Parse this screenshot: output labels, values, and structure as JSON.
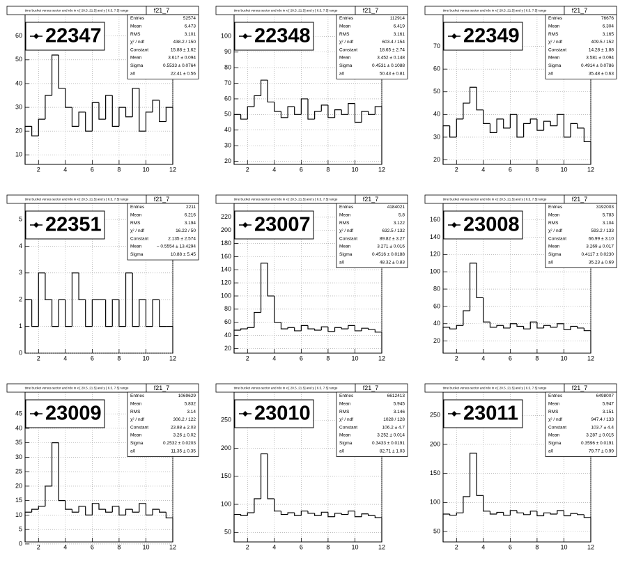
{
  "chart_data": [
    {
      "type": "histogram",
      "title": "time bucket versus sector and rdo in x [ 20.5, 21.5] and y [  6.5,  7.5] range",
      "name": "f21_7",
      "label": "22347",
      "color": "#000000",
      "grid": true,
      "bins": [
        1,
        1.5,
        2,
        2.5,
        3,
        3.5,
        4,
        4.5,
        5,
        5.5,
        6,
        6.5,
        7,
        7.5,
        8,
        8.5,
        9,
        9.5,
        10,
        10.5,
        11,
        11.5,
        12
      ],
      "values": [
        22,
        18,
        25,
        35,
        52,
        38,
        30,
        22,
        28,
        20,
        32,
        25,
        35,
        22,
        30,
        26,
        38,
        20,
        28,
        33,
        24,
        30
      ],
      "xlim": [
        1,
        12
      ],
      "xticks": [
        2,
        4,
        6,
        8,
        10,
        12
      ],
      "ylim": [
        6,
        69
      ],
      "yticks": [
        10,
        20,
        30,
        40,
        50,
        60
      ],
      "stats": [
        [
          "Entries",
          "52574"
        ],
        [
          "Mean",
          "6.473"
        ],
        [
          "RMS",
          "3.101"
        ],
        [
          "χ² / ndf",
          "438.2 / 150"
        ],
        [
          "Constant",
          "15.88 ± 1.62"
        ],
        [
          "Mean",
          "3.617 ± 0.094"
        ],
        [
          "Sigma",
          "0.5533 ± 0.0764"
        ],
        [
          "a0",
          "22.41 ± 0.56"
        ]
      ]
    },
    {
      "type": "histogram",
      "title": "time bucket versus sector and rdo in x [ 20.5, 21.5] and y [  6.5,  7.5] range",
      "name": "f21_7",
      "label": "22348",
      "color": "#000000",
      "grid": true,
      "bins": [
        1,
        1.5,
        2,
        2.5,
        3,
        3.5,
        4,
        4.5,
        5,
        5.5,
        6,
        6.5,
        7,
        7.5,
        8,
        8.5,
        9,
        9.5,
        10,
        10.5,
        11,
        11.5,
        12
      ],
      "values": [
        50,
        47,
        55,
        62,
        72,
        58,
        52,
        48,
        55,
        50,
        60,
        47,
        52,
        56,
        48,
        53,
        50,
        57,
        45,
        52,
        50,
        55
      ],
      "xlim": [
        1,
        12
      ],
      "xticks": [
        2,
        4,
        6,
        8,
        10,
        12
      ],
      "ylim": [
        18,
        114
      ],
      "yticks": [
        20,
        30,
        40,
        50,
        60,
        70,
        80,
        90,
        100
      ],
      "stats": [
        [
          "Entries",
          "112914"
        ],
        [
          "Mean",
          "6.419"
        ],
        [
          "RMS",
          "3.161"
        ],
        [
          "χ² / ndf",
          "603.4 / 154"
        ],
        [
          "Constant",
          "18.65 ± 2.74"
        ],
        [
          "Mean",
          "3.452 ± 0.148"
        ],
        [
          "Sigma",
          "0.4531 ± 0.1088"
        ],
        [
          "a0",
          "50.43 ± 0.81"
        ]
      ]
    },
    {
      "type": "histogram",
      "title": "time bucket versus sector and rdo in x [ 20.5, 21.5] and y [  6.5,  7.5] range",
      "name": "f21_7",
      "label": "22349",
      "color": "#000000",
      "grid": true,
      "bins": [
        1,
        1.5,
        2,
        2.5,
        3,
        3.5,
        4,
        4.5,
        5,
        5.5,
        6,
        6.5,
        7,
        7.5,
        8,
        8.5,
        9,
        9.5,
        10,
        10.5,
        11,
        11.5,
        12
      ],
      "values": [
        35,
        30,
        38,
        45,
        52,
        42,
        36,
        32,
        38,
        34,
        40,
        30,
        36,
        38,
        33,
        37,
        35,
        40,
        30,
        36,
        34,
        28
      ],
      "xlim": [
        1,
        12
      ],
      "xticks": [
        2,
        4,
        6,
        8,
        10,
        12
      ],
      "ylim": [
        18,
        84
      ],
      "yticks": [
        20,
        30,
        40,
        50,
        60,
        70
      ],
      "stats": [
        [
          "Entries",
          "76676"
        ],
        [
          "Mean",
          "6.304"
        ],
        [
          "RMS",
          "3.165"
        ],
        [
          "χ² / ndf",
          "409.5 / 152"
        ],
        [
          "Constant",
          "14.28 ± 1.88"
        ],
        [
          "Mean",
          "3.581 ± 0.094"
        ],
        [
          "Sigma",
          "0.4914 ± 0.0786"
        ],
        [
          "a0",
          "35.48 ± 0.63"
        ]
      ]
    },
    {
      "type": "histogram",
      "title": "time bucket versus sector and rdo in x [ 20.5, 21.5] and y [  6.5,  7.5] range",
      "name": "f21_7",
      "label": "22351",
      "color": "#000000",
      "grid": true,
      "bins": [
        1,
        1.5,
        2,
        2.5,
        3,
        3.5,
        4,
        4.5,
        5,
        5.5,
        6,
        6.5,
        7,
        7.5,
        8,
        8.5,
        9,
        9.5,
        10,
        10.5,
        11,
        11.5,
        12
      ],
      "values": [
        2,
        1,
        3,
        2,
        1,
        2,
        1,
        3,
        2,
        1,
        2,
        2,
        1,
        2,
        1,
        3,
        1,
        2,
        1,
        2,
        1,
        1
      ],
      "xlim": [
        1,
        12
      ],
      "xticks": [
        2,
        4,
        6,
        8,
        10,
        12
      ],
      "ylim": [
        0,
        5.6
      ],
      "yticks": [
        0,
        1,
        2,
        3,
        4,
        5
      ],
      "stats": [
        [
          "Entries",
          "2211"
        ],
        [
          "Mean",
          "6.216"
        ],
        [
          "RMS",
          "3.194"
        ],
        [
          "χ² / ndf",
          "16.22 / 50"
        ],
        [
          "Constant",
          "2.135 ± 2.574"
        ],
        [
          "Mean",
          "− 0.5554 ± 13.4294"
        ],
        [
          "Sigma",
          "10.88 ± 5.45"
        ]
      ]
    },
    {
      "type": "histogram",
      "title": "time bucket versus sector and rdo in x [ 20.5, 21.5] and y [  6.5,  7.5] range",
      "name": "f21_7",
      "label": "23007",
      "color": "#000000",
      "grid": true,
      "bins": [
        1,
        1.5,
        2,
        2.5,
        3,
        3.5,
        4,
        4.5,
        5,
        5.5,
        6,
        6.5,
        7,
        7.5,
        8,
        8.5,
        9,
        9.5,
        10,
        10.5,
        11,
        11.5,
        12
      ],
      "values": [
        48,
        50,
        52,
        75,
        150,
        100,
        60,
        50,
        52,
        47,
        55,
        50,
        48,
        53,
        46,
        52,
        50,
        55,
        47,
        51,
        49,
        45
      ],
      "xlim": [
        1,
        12
      ],
      "xticks": [
        2,
        4,
        6,
        8,
        10,
        12
      ],
      "ylim": [
        13,
        241
      ],
      "yticks": [
        20,
        40,
        60,
        80,
        100,
        120,
        140,
        160,
        180,
        200,
        220
      ],
      "stats": [
        [
          "Entries",
          "4184021"
        ],
        [
          "Mean",
          "5.8"
        ],
        [
          "RMS",
          "3.122"
        ],
        [
          "χ² / ndf",
          "632.5 / 132"
        ],
        [
          "Constant",
          "89.82 ± 3.27"
        ],
        [
          "Mean",
          "3.271 ± 0.016"
        ],
        [
          "Sigma",
          "0.4516 ± 0.0188"
        ],
        [
          "a0",
          "48.32 ± 0.83"
        ]
      ]
    },
    {
      "type": "histogram",
      "title": "time bucket versus sector and rdo in x [ 20.5, 21.5] and y [  6.5,  7.5] range",
      "name": "f21_7",
      "label": "23008",
      "color": "#000000",
      "grid": true,
      "bins": [
        1,
        1.5,
        2,
        2.5,
        3,
        3.5,
        4,
        4.5,
        5,
        5.5,
        6,
        6.5,
        7,
        7.5,
        8,
        8.5,
        9,
        9.5,
        10,
        10.5,
        11,
        11.5,
        12
      ],
      "values": [
        36,
        34,
        38,
        55,
        110,
        70,
        42,
        36,
        38,
        35,
        40,
        37,
        34,
        42,
        35,
        38,
        36,
        40,
        33,
        37,
        35,
        32
      ],
      "xlim": [
        1,
        12
      ],
      "xticks": [
        2,
        4,
        6,
        8,
        10,
        12
      ],
      "ylim": [
        6,
        179
      ],
      "yticks": [
        20,
        40,
        60,
        80,
        100,
        120,
        140,
        160
      ],
      "stats": [
        [
          "Entries",
          "3192003"
        ],
        [
          "Mean",
          "5.783"
        ],
        [
          "RMS",
          "3.104"
        ],
        [
          "χ² / ndf",
          "593.2 / 133"
        ],
        [
          "Constant",
          "66.99 ± 3.10"
        ],
        [
          "Mean",
          "3.269 ± 0.017"
        ],
        [
          "Sigma",
          "0.4117 ± 0.0230"
        ],
        [
          "a0",
          "35.23 ± 0.69"
        ]
      ]
    },
    {
      "type": "histogram",
      "title": "time bucket versus sector and rdo in x [ 20.5, 21.5] and y [  6.5,  7.5] range",
      "name": "f21_7",
      "label": "23009",
      "color": "#000000",
      "grid": true,
      "bins": [
        1,
        1.5,
        2,
        2.5,
        3,
        3.5,
        4,
        4.5,
        5,
        5.5,
        6,
        6.5,
        7,
        7.5,
        8,
        8.5,
        9,
        9.5,
        10,
        10.5,
        11,
        11.5,
        12
      ],
      "values": [
        11,
        12,
        13,
        20,
        35,
        15,
        12,
        11,
        13,
        10,
        14,
        12,
        11,
        13,
        10,
        12,
        11,
        14,
        10,
        12,
        11,
        9
      ],
      "xlim": [
        1,
        12
      ],
      "xticks": [
        2,
        4,
        6,
        8,
        10,
        12
      ],
      "ylim": [
        0.7,
        52.5
      ],
      "yticks": [
        0,
        5,
        10,
        15,
        20,
        25,
        30,
        35,
        40,
        45
      ],
      "stats": [
        [
          "Entries",
          "1069629"
        ],
        [
          "Mean",
          "5.832"
        ],
        [
          "RMS",
          "3.14"
        ],
        [
          "χ² / ndf",
          "306.2 / 122"
        ],
        [
          "Constant",
          "23.88 ± 2.03"
        ],
        [
          "Mean",
          "3.26 ± 0.02"
        ],
        [
          "Sigma",
          "0.2532 ± 0.0203"
        ],
        [
          "a0",
          "11.35 ± 0.35"
        ]
      ]
    },
    {
      "type": "histogram",
      "title": "time bucket versus sector and rdo in x [ 20.5, 21.5] and y [  6.5,  7.5] range",
      "name": "f21_7",
      "label": "23010",
      "color": "#000000",
      "grid": true,
      "bins": [
        1,
        1.5,
        2,
        2.5,
        3,
        3.5,
        4,
        4.5,
        5,
        5.5,
        6,
        6.5,
        7,
        7.5,
        8,
        8.5,
        9,
        9.5,
        10,
        10.5,
        11,
        11.5,
        12
      ],
      "values": [
        82,
        80,
        85,
        110,
        190,
        110,
        88,
        82,
        85,
        80,
        88,
        84,
        80,
        86,
        78,
        84,
        82,
        88,
        78,
        83,
        80,
        76
      ],
      "xlim": [
        1,
        12
      ],
      "xticks": [
        2,
        4,
        6,
        8,
        10,
        12
      ],
      "ylim": [
        33,
        300
      ],
      "yticks": [
        50,
        100,
        150,
        200,
        250
      ],
      "stats": [
        [
          "Entries",
          "6612413"
        ],
        [
          "Mean",
          "5.945"
        ],
        [
          "RMS",
          "3.146"
        ],
        [
          "χ² / ndf",
          "1028 / 128"
        ],
        [
          "Constant",
          "106.2 ± 4.7"
        ],
        [
          "Mean",
          "3.252 ± 0.014"
        ],
        [
          "Sigma",
          "0.3433 ± 0.0191"
        ],
        [
          "a0",
          "82.71 ± 1.03"
        ]
      ]
    },
    {
      "type": "histogram",
      "title": "time bucket versus sector and rdo in x [ 20.5, 21.5] and y [  6.5,  7.5] range",
      "name": "f21_7",
      "label": "23011",
      "color": "#000000",
      "grid": true,
      "bins": [
        1,
        1.5,
        2,
        2.5,
        3,
        3.5,
        4,
        4.5,
        5,
        5.5,
        6,
        6.5,
        7,
        7.5,
        8,
        8.5,
        9,
        9.5,
        10,
        10.5,
        11,
        11.5,
        12
      ],
      "values": [
        80,
        78,
        82,
        110,
        185,
        112,
        85,
        80,
        83,
        78,
        86,
        82,
        79,
        85,
        77,
        82,
        80,
        86,
        77,
        81,
        79,
        74
      ],
      "xlim": [
        1,
        12
      ],
      "xticks": [
        2,
        4,
        6,
        8,
        10,
        12
      ],
      "ylim": [
        32,
        290
      ],
      "yticks": [
        50,
        100,
        150,
        200,
        250
      ],
      "stats": [
        [
          "Entries",
          "6498007"
        ],
        [
          "Mean",
          "5.947"
        ],
        [
          "RMS",
          "3.151"
        ],
        [
          "χ² / ndf",
          "947.4 / 133"
        ],
        [
          "Constant",
          "103.7 ± 4.4"
        ],
        [
          "Mean",
          "3.287 ± 0.015"
        ],
        [
          "Sigma",
          "0.3596 ± 0.0191"
        ],
        [
          "a0",
          "79.77 ± 0.99"
        ]
      ]
    }
  ]
}
